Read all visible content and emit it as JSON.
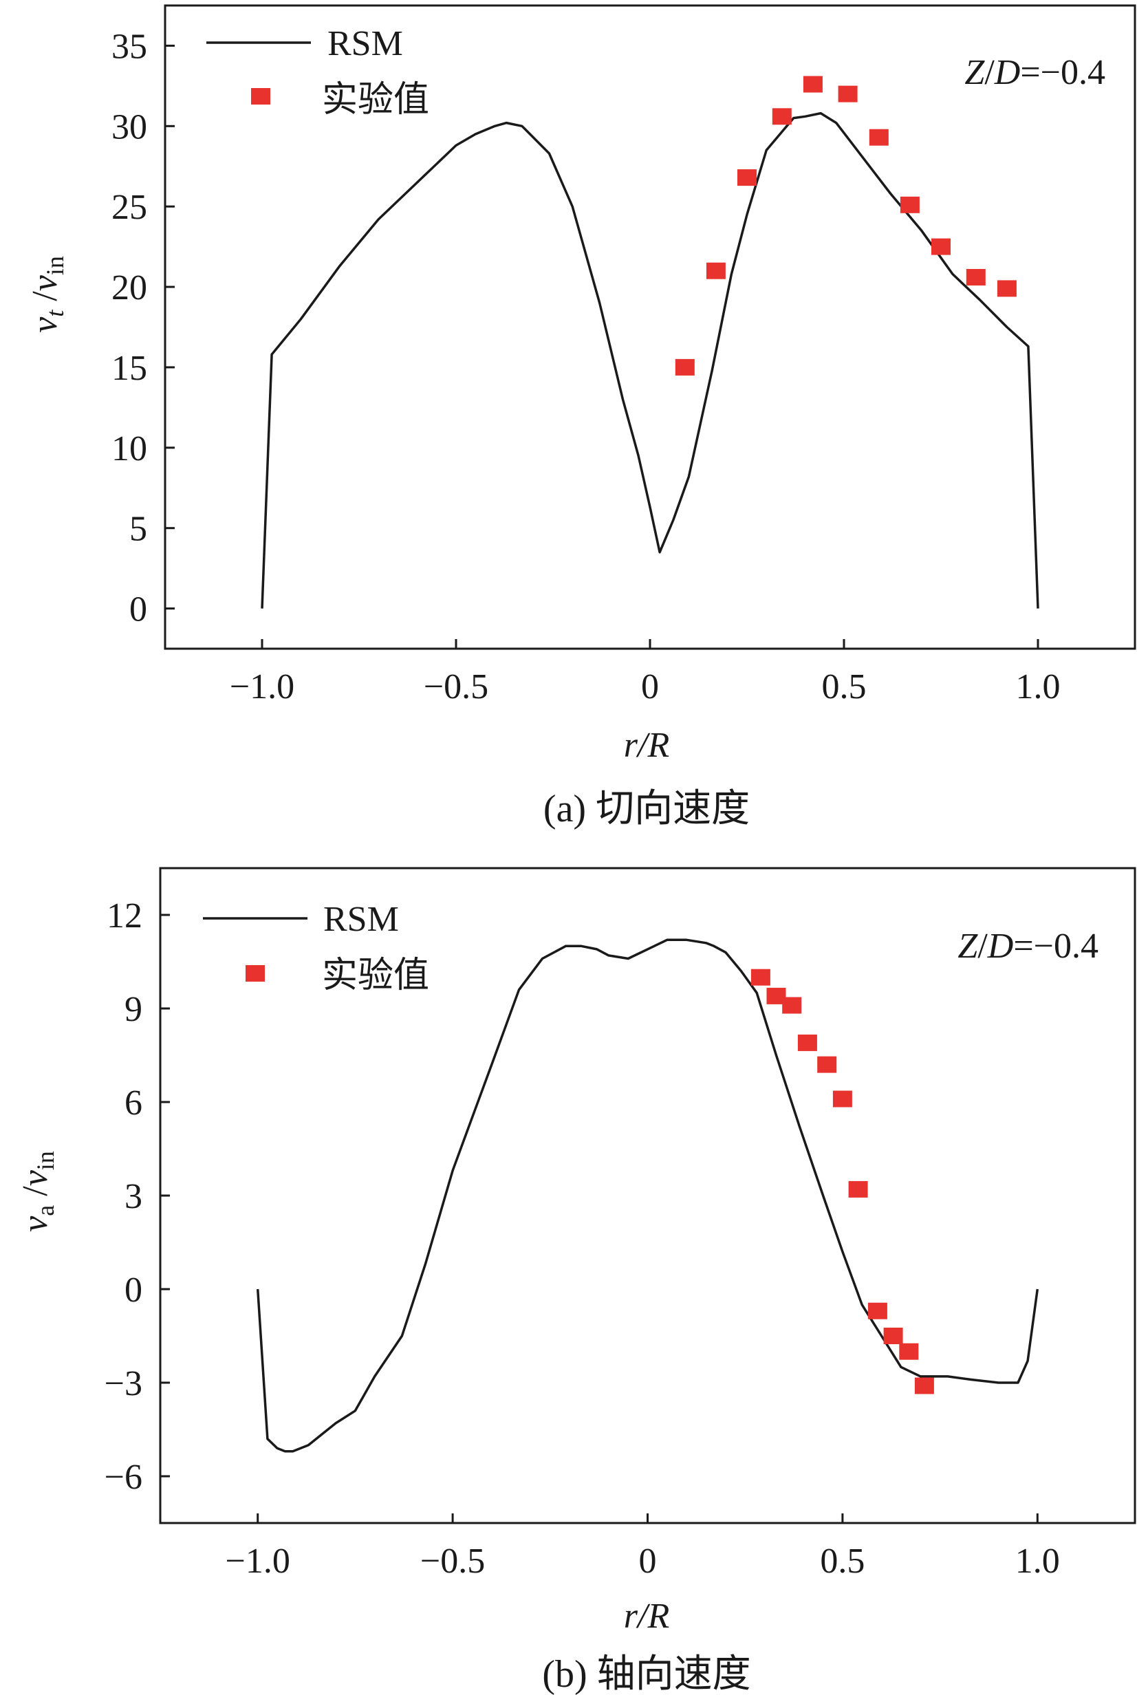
{
  "colors": {
    "axis": "#1a1a1a",
    "line": "#1a1a1a",
    "marker": "#e8322d",
    "background": "#ffffff"
  },
  "chart_data": [
    {
      "id": "a",
      "type": "line",
      "title": "",
      "caption": "(a) 切向速度",
      "xlabel": "r/R",
      "ylabel": {
        "main": "v",
        "main_sub": "t",
        "sep": " /",
        "denom": "v",
        "denom_sub": "in"
      },
      "xlim": [
        -1.25,
        1.25
      ],
      "ylim": [
        -2.5,
        37.5
      ],
      "xticks": [
        -1.0,
        -0.5,
        0,
        0.5,
        1.0
      ],
      "xtick_labels": [
        "−1.0",
        "−0.5",
        "0",
        "0.5",
        "1.0"
      ],
      "yticks": [
        0,
        5,
        10,
        15,
        20,
        25,
        30,
        35
      ],
      "ytick_labels": [
        "0",
        "5",
        "10",
        "15",
        "20",
        "25",
        "30",
        "35"
      ],
      "grid": false,
      "legend_position": "top-left",
      "annotation": {
        "italic_1": "Z",
        "slash": "/",
        "italic_2": "D",
        "rest": "=−0.4",
        "position": "top-right"
      },
      "series": [
        {
          "name": "RSM",
          "kind": "line",
          "x": [
            -1.0,
            -0.975,
            -0.9,
            -0.8,
            -0.7,
            -0.6,
            -0.5,
            -0.45,
            -0.4,
            -0.37,
            -0.33,
            -0.26,
            -0.2,
            -0.13,
            -0.07,
            -0.03,
            0.0,
            0.025,
            0.06,
            0.1,
            0.16,
            0.21,
            0.25,
            0.3,
            0.37,
            0.4,
            0.44,
            0.48,
            0.55,
            0.62,
            0.7,
            0.78,
            0.85,
            0.92,
            0.975,
            1.0
          ],
          "y": [
            0,
            15.8,
            18,
            21.3,
            24.2,
            26.5,
            28.8,
            29.5,
            30.0,
            30.2,
            30.0,
            28.3,
            25.0,
            19.0,
            13.0,
            9.5,
            6.3,
            3.5,
            5.5,
            8.2,
            14.8,
            20.8,
            24.5,
            28.5,
            30.5,
            30.6,
            30.8,
            30.2,
            28.0,
            25.8,
            23.5,
            20.8,
            19.2,
            17.5,
            16.3,
            0
          ]
        },
        {
          "name": "实验值",
          "kind": "scatter",
          "x": [
            0.09,
            0.17,
            0.25,
            0.34,
            0.42,
            0.51,
            0.59,
            0.67,
            0.75,
            0.84,
            0.92
          ],
          "y": [
            15.0,
            21.0,
            26.8,
            30.6,
            32.6,
            32.0,
            29.3,
            25.1,
            22.5,
            20.6,
            19.9
          ]
        }
      ]
    },
    {
      "id": "b",
      "type": "line",
      "title": "",
      "caption": "(b) 轴向速度",
      "xlabel": "r/R",
      "ylabel": {
        "main": "v",
        "main_sub": "a",
        "sep": " /",
        "denom": "v",
        "denom_sub": "in"
      },
      "xlim": [
        -1.25,
        1.25
      ],
      "ylim": [
        -7.5,
        13.5
      ],
      "xticks": [
        -1.0,
        -0.5,
        0,
        0.5,
        1.0
      ],
      "xtick_labels": [
        "−1.0",
        "−0.5",
        "0",
        "0.5",
        "1.0"
      ],
      "yticks": [
        -6,
        -3,
        0,
        3,
        6,
        9,
        12
      ],
      "ytick_labels": [
        "−6",
        "−3",
        "0",
        "3",
        "6",
        "9",
        "12"
      ],
      "grid": false,
      "legend_position": "top-left",
      "annotation": {
        "italic_1": "Z",
        "slash": "/",
        "italic_2": "D",
        "rest": "=−0.4",
        "position": "top-right"
      },
      "series": [
        {
          "name": "RSM",
          "kind": "line",
          "x": [
            -1.0,
            -0.975,
            -0.95,
            -0.93,
            -0.91,
            -0.87,
            -0.83,
            -0.8,
            -0.75,
            -0.7,
            -0.63,
            -0.57,
            -0.5,
            -0.45,
            -0.4,
            -0.33,
            -0.27,
            -0.21,
            -0.17,
            -0.13,
            -0.1,
            -0.05,
            0.0,
            0.05,
            0.1,
            0.15,
            0.17,
            0.2,
            0.24,
            0.28,
            0.33,
            0.39,
            0.45,
            0.5,
            0.55,
            0.6,
            0.65,
            0.7,
            0.77,
            0.83,
            0.9,
            0.95,
            0.975,
            1.0
          ],
          "y": [
            0,
            -4.8,
            -5.1,
            -5.2,
            -5.2,
            -5.0,
            -4.6,
            -4.3,
            -3.9,
            -2.8,
            -1.5,
            0.8,
            3.8,
            5.5,
            7.2,
            9.6,
            10.6,
            11.0,
            11.0,
            10.9,
            10.7,
            10.6,
            10.9,
            11.2,
            11.2,
            11.1,
            11.0,
            10.8,
            10.2,
            9.5,
            7.5,
            5.2,
            3.0,
            1.2,
            -0.5,
            -1.5,
            -2.5,
            -2.8,
            -2.8,
            -2.9,
            -3.0,
            -3.0,
            -2.3,
            0
          ]
        },
        {
          "name": "实验值",
          "kind": "scatter",
          "x": [
            0.29,
            0.33,
            0.37,
            0.41,
            0.46,
            0.5,
            0.54,
            0.59,
            0.63,
            0.67,
            0.71
          ],
          "y": [
            10.0,
            9.4,
            9.1,
            7.9,
            7.2,
            6.1,
            3.2,
            -0.7,
            -1.5,
            -2.0,
            -3.1
          ]
        }
      ]
    }
  ]
}
